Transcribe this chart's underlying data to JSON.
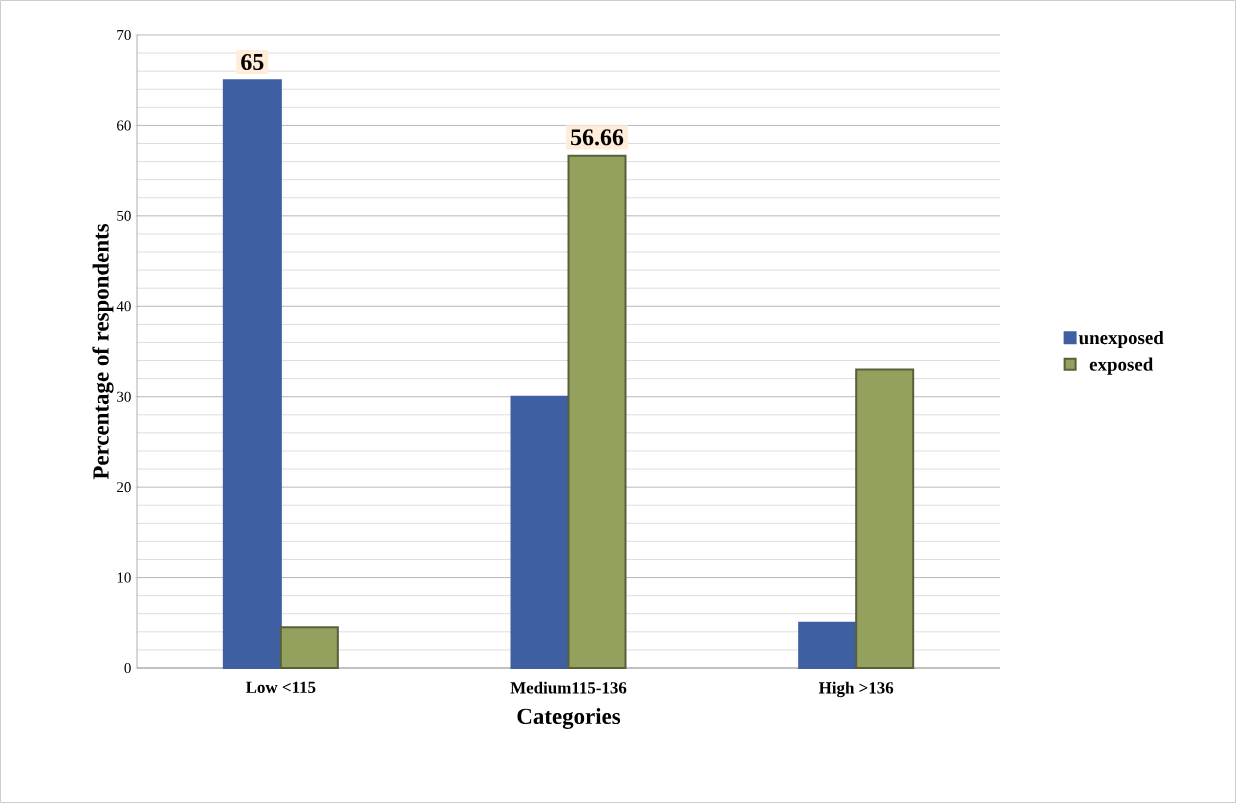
{
  "chart_data": {
    "type": "bar",
    "xlabel": "Categories",
    "ylabel": "Percentage of respondents",
    "categories": [
      "Low <115",
      "Medium115-136",
      "High >136"
    ],
    "series": [
      {
        "name": "unexposed",
        "color": "#3f5fa3",
        "values": [
          65,
          30,
          5
        ],
        "value_labels": [
          "65",
          null,
          null
        ]
      },
      {
        "name": "exposed",
        "color": "#93a05e",
        "values": [
          4.5,
          56.66,
          33
        ],
        "value_labels": [
          null,
          "56.66",
          null
        ]
      }
    ],
    "ylim": [
      0,
      70
    ],
    "yticks": [
      0,
      10,
      20,
      30,
      40,
      50,
      60,
      70
    ],
    "grid": "y",
    "legend": "right"
  }
}
